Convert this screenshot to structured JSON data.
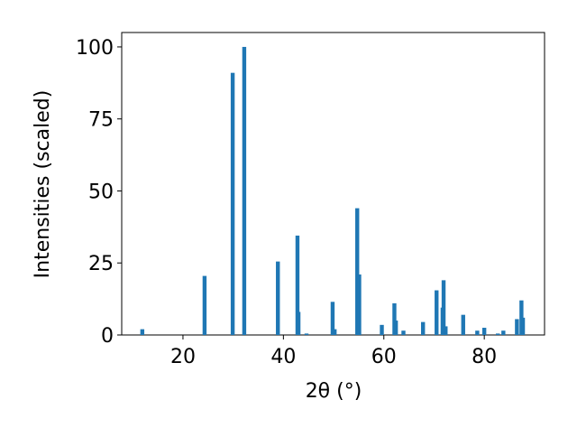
{
  "chart_data": {
    "type": "bar",
    "x_label": "2θ (°)",
    "y_label": "Intensities (scaled)",
    "color": "#1f77b4",
    "x": [
      11.9,
      24.3,
      29.9,
      32.2,
      38.9,
      42.8,
      43.0,
      44.6,
      49.8,
      50.2,
      54.7,
      55.1,
      59.6,
      62.1,
      62.4,
      63.9,
      67.8,
      70.5,
      71.7,
      71.9,
      72.3,
      75.8,
      78.6,
      80.0,
      82.7,
      83.8,
      86.5,
      87.4,
      87.7
    ],
    "values": [
      2,
      20.5,
      91,
      100,
      25.5,
      34.5,
      8,
      0.5,
      11.5,
      2,
      44,
      21,
      3.5,
      11,
      5,
      1.5,
      4.5,
      15.5,
      9.5,
      19,
      3,
      7,
      1.5,
      2.5,
      0.5,
      1.5,
      5.5,
      12,
      6
    ],
    "xlim": [
      7.8,
      92.0
    ],
    "ylim": [
      0,
      105
    ],
    "xticks": [
      20,
      40,
      60,
      80
    ],
    "yticks": [
      0,
      25,
      50,
      75,
      100
    ]
  }
}
